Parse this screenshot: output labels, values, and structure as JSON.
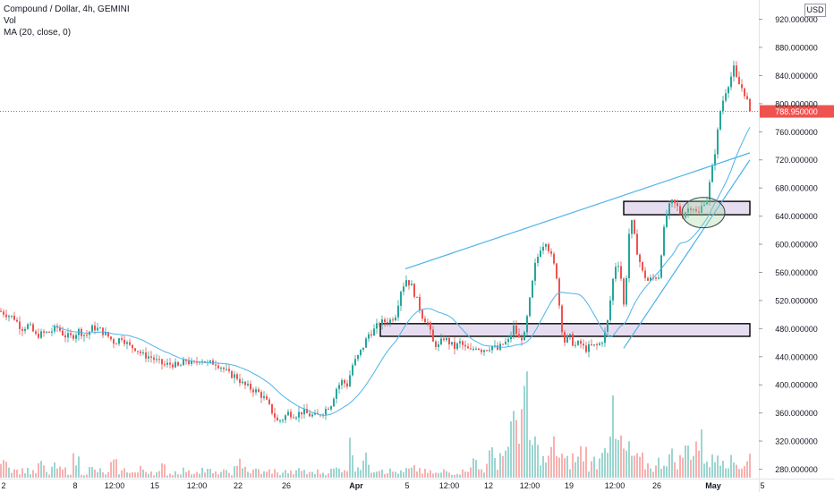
{
  "chart_data": {
    "type": "candlestick",
    "title": "Compound / Dollar, 4h, GEMINI",
    "indicators": [
      "Vol",
      "MA (20, close, 0)"
    ],
    "currency": "USD",
    "last_price": "788.950000",
    "y_ticks": [
      "920.000000",
      "880.000000",
      "840.000000",
      "800.000000",
      "760.000000",
      "720.000000",
      "680.000000",
      "640.000000",
      "600.000000",
      "560.000000",
      "520.000000",
      "480.000000",
      "440.000000",
      "400.000000",
      "360.000000",
      "320.000000",
      "280.000000"
    ],
    "y_tick_values": [
      920,
      880,
      840,
      800,
      760,
      720,
      680,
      640,
      600,
      560,
      520,
      480,
      440,
      400,
      360,
      320,
      280
    ],
    "ylim": [
      270,
      935
    ],
    "x_ticks": [
      "2",
      "8",
      "12:00",
      "15",
      "12:00",
      "22",
      "26",
      "Apr",
      "5",
      "12:00",
      "12",
      "12:00",
      "19",
      "12:00",
      "26",
      "May",
      "5"
    ],
    "colors": {
      "up": "#26a69a",
      "down": "#ef5350",
      "ma": "#4fb3e8",
      "annotation": "#4fb3e8",
      "zone_fill": "#e1d5ec",
      "price_line": "#ef5350"
    },
    "price_path": [
      [
        0,
        505
      ],
      [
        8,
        500
      ],
      [
        16,
        495
      ],
      [
        24,
        480
      ],
      [
        32,
        485
      ],
      [
        40,
        470
      ],
      [
        48,
        473
      ],
      [
        56,
        475
      ],
      [
        64,
        482
      ],
      [
        72,
        470
      ],
      [
        80,
        468
      ],
      [
        88,
        477
      ],
      [
        96,
        470
      ],
      [
        104,
        482
      ],
      [
        112,
        478
      ],
      [
        120,
        470
      ],
      [
        128,
        460
      ],
      [
        136,
        468
      ],
      [
        144,
        455
      ],
      [
        152,
        452
      ],
      [
        160,
        442
      ],
      [
        168,
        440
      ],
      [
        176,
        433
      ],
      [
        184,
        428
      ],
      [
        192,
        430
      ],
      [
        200,
        425
      ],
      [
        208,
        435
      ],
      [
        216,
        428
      ],
      [
        224,
        438
      ],
      [
        232,
        430
      ],
      [
        240,
        432
      ],
      [
        248,
        425
      ],
      [
        256,
        415
      ],
      [
        264,
        412
      ],
      [
        272,
        400
      ],
      [
        280,
        395
      ],
      [
        288,
        390
      ],
      [
        296,
        380
      ],
      [
        304,
        362
      ],
      [
        310,
        348
      ],
      [
        316,
        352
      ],
      [
        322,
        360
      ],
      [
        330,
        357
      ],
      [
        338,
        362
      ],
      [
        346,
        357
      ],
      [
        354,
        355
      ],
      [
        362,
        363
      ],
      [
        370,
        373
      ],
      [
        376,
        395
      ],
      [
        382,
        405
      ],
      [
        388,
        400
      ],
      [
        394,
        428
      ],
      [
        400,
        440
      ],
      [
        406,
        455
      ],
      [
        412,
        472
      ],
      [
        418,
        478
      ],
      [
        424,
        488
      ],
      [
        430,
        490
      ],
      [
        436,
        492
      ],
      [
        442,
        500
      ],
      [
        448,
        535
      ],
      [
        454,
        550
      ],
      [
        460,
        540
      ],
      [
        466,
        520
      ],
      [
        472,
        498
      ],
      [
        478,
        488
      ],
      [
        484,
        460
      ],
      [
        490,
        455
      ],
      [
        496,
        467
      ],
      [
        502,
        460
      ],
      [
        508,
        453
      ],
      [
        514,
        460
      ],
      [
        520,
        452
      ],
      [
        526,
        448
      ],
      [
        532,
        455
      ],
      [
        538,
        450
      ],
      [
        544,
        452
      ],
      [
        550,
        455
      ],
      [
        556,
        450
      ],
      [
        562,
        458
      ],
      [
        568,
        462
      ],
      [
        574,
        482
      ],
      [
        580,
        465
      ],
      [
        586,
        470
      ],
      [
        592,
        520
      ],
      [
        598,
        570
      ],
      [
        604,
        595
      ],
      [
        610,
        605
      ],
      [
        614,
        590
      ],
      [
        618,
        575
      ],
      [
        622,
        555
      ],
      [
        626,
        500
      ],
      [
        630,
        460
      ],
      [
        636,
        470
      ],
      [
        642,
        455
      ],
      [
        648,
        460
      ],
      [
        654,
        450
      ],
      [
        660,
        455
      ],
      [
        666,
        455
      ],
      [
        672,
        460
      ],
      [
        678,
        480
      ],
      [
        682,
        520
      ],
      [
        686,
        560
      ],
      [
        690,
        580
      ],
      [
        694,
        552
      ],
      [
        698,
        500
      ],
      [
        702,
        610
      ],
      [
        706,
        630
      ],
      [
        712,
        590
      ],
      [
        718,
        560
      ],
      [
        724,
        548
      ],
      [
        730,
        552
      ],
      [
        736,
        555
      ],
      [
        740,
        600
      ],
      [
        744,
        640
      ],
      [
        750,
        660
      ],
      [
        756,
        655
      ],
      [
        762,
        640
      ],
      [
        768,
        650
      ],
      [
        774,
        655
      ],
      [
        780,
        640
      ],
      [
        786,
        660
      ],
      [
        790,
        665
      ],
      [
        795,
        700
      ],
      [
        800,
        740
      ],
      [
        805,
        790
      ],
      [
        810,
        815
      ],
      [
        816,
        835
      ],
      [
        820,
        850
      ],
      [
        824,
        830
      ],
      [
        828,
        825
      ],
      [
        832,
        815
      ],
      [
        836,
        800
      ],
      [
        840,
        789
      ]
    ],
    "volumes": [
      0.3,
      0.12,
      0.08,
      0.1,
      0.06,
      0.14,
      0.05,
      0.12,
      0.09,
      0.07,
      0.2,
      0.06,
      0.1,
      0.08,
      0.05,
      0.15,
      0.07,
      0.09,
      0.06,
      0.1,
      0.08,
      0.06,
      0.12,
      0.05,
      0.07,
      0.09,
      0.06,
      0.1,
      0.08,
      0.05,
      0.07,
      0.06,
      0.1,
      0.18,
      0.07,
      0.09,
      0.06,
      0.08,
      0.05,
      0.07,
      0.06,
      0.09,
      0.05,
      0.07,
      0.06,
      0.08,
      0.1,
      0.12,
      0.35,
      0.15,
      0.2,
      0.1,
      0.12,
      0.08,
      0.07,
      0.06,
      0.09,
      0.1,
      0.07,
      0.06,
      0.05,
      0.08,
      0.06,
      0.07,
      0.12,
      0.18,
      0.1,
      0.25,
      0.2,
      0.3,
      0.55,
      0.7,
      0.85,
      0.4,
      0.3,
      0.2,
      0.35,
      0.25,
      0.18,
      0.22,
      0.3,
      0.15,
      0.2,
      0.5,
      0.65,
      0.4,
      0.3,
      0.25,
      0.2,
      0.15,
      0.12,
      0.18,
      0.25,
      0.2,
      0.3,
      0.35,
      0.4,
      0.25,
      0.2,
      0.3,
      0.22,
      0.18,
      0.15,
      0.25
    ]
  },
  "annotations": {
    "upper_channel_line": [
      [
        453,
        565
      ],
      [
        838,
        730
      ]
    ],
    "lower_channel_line": [
      [
        697,
        452
      ],
      [
        838,
        720
      ]
    ],
    "support_zone": {
      "x_start": 425,
      "x_end": 838,
      "y_low": 469,
      "y_high": 487
    },
    "resistance_zone": {
      "x_start": 697,
      "x_end": 838,
      "y_low": 642,
      "y_high": 661
    },
    "ellipse_center": [
      786,
      645
    ]
  }
}
